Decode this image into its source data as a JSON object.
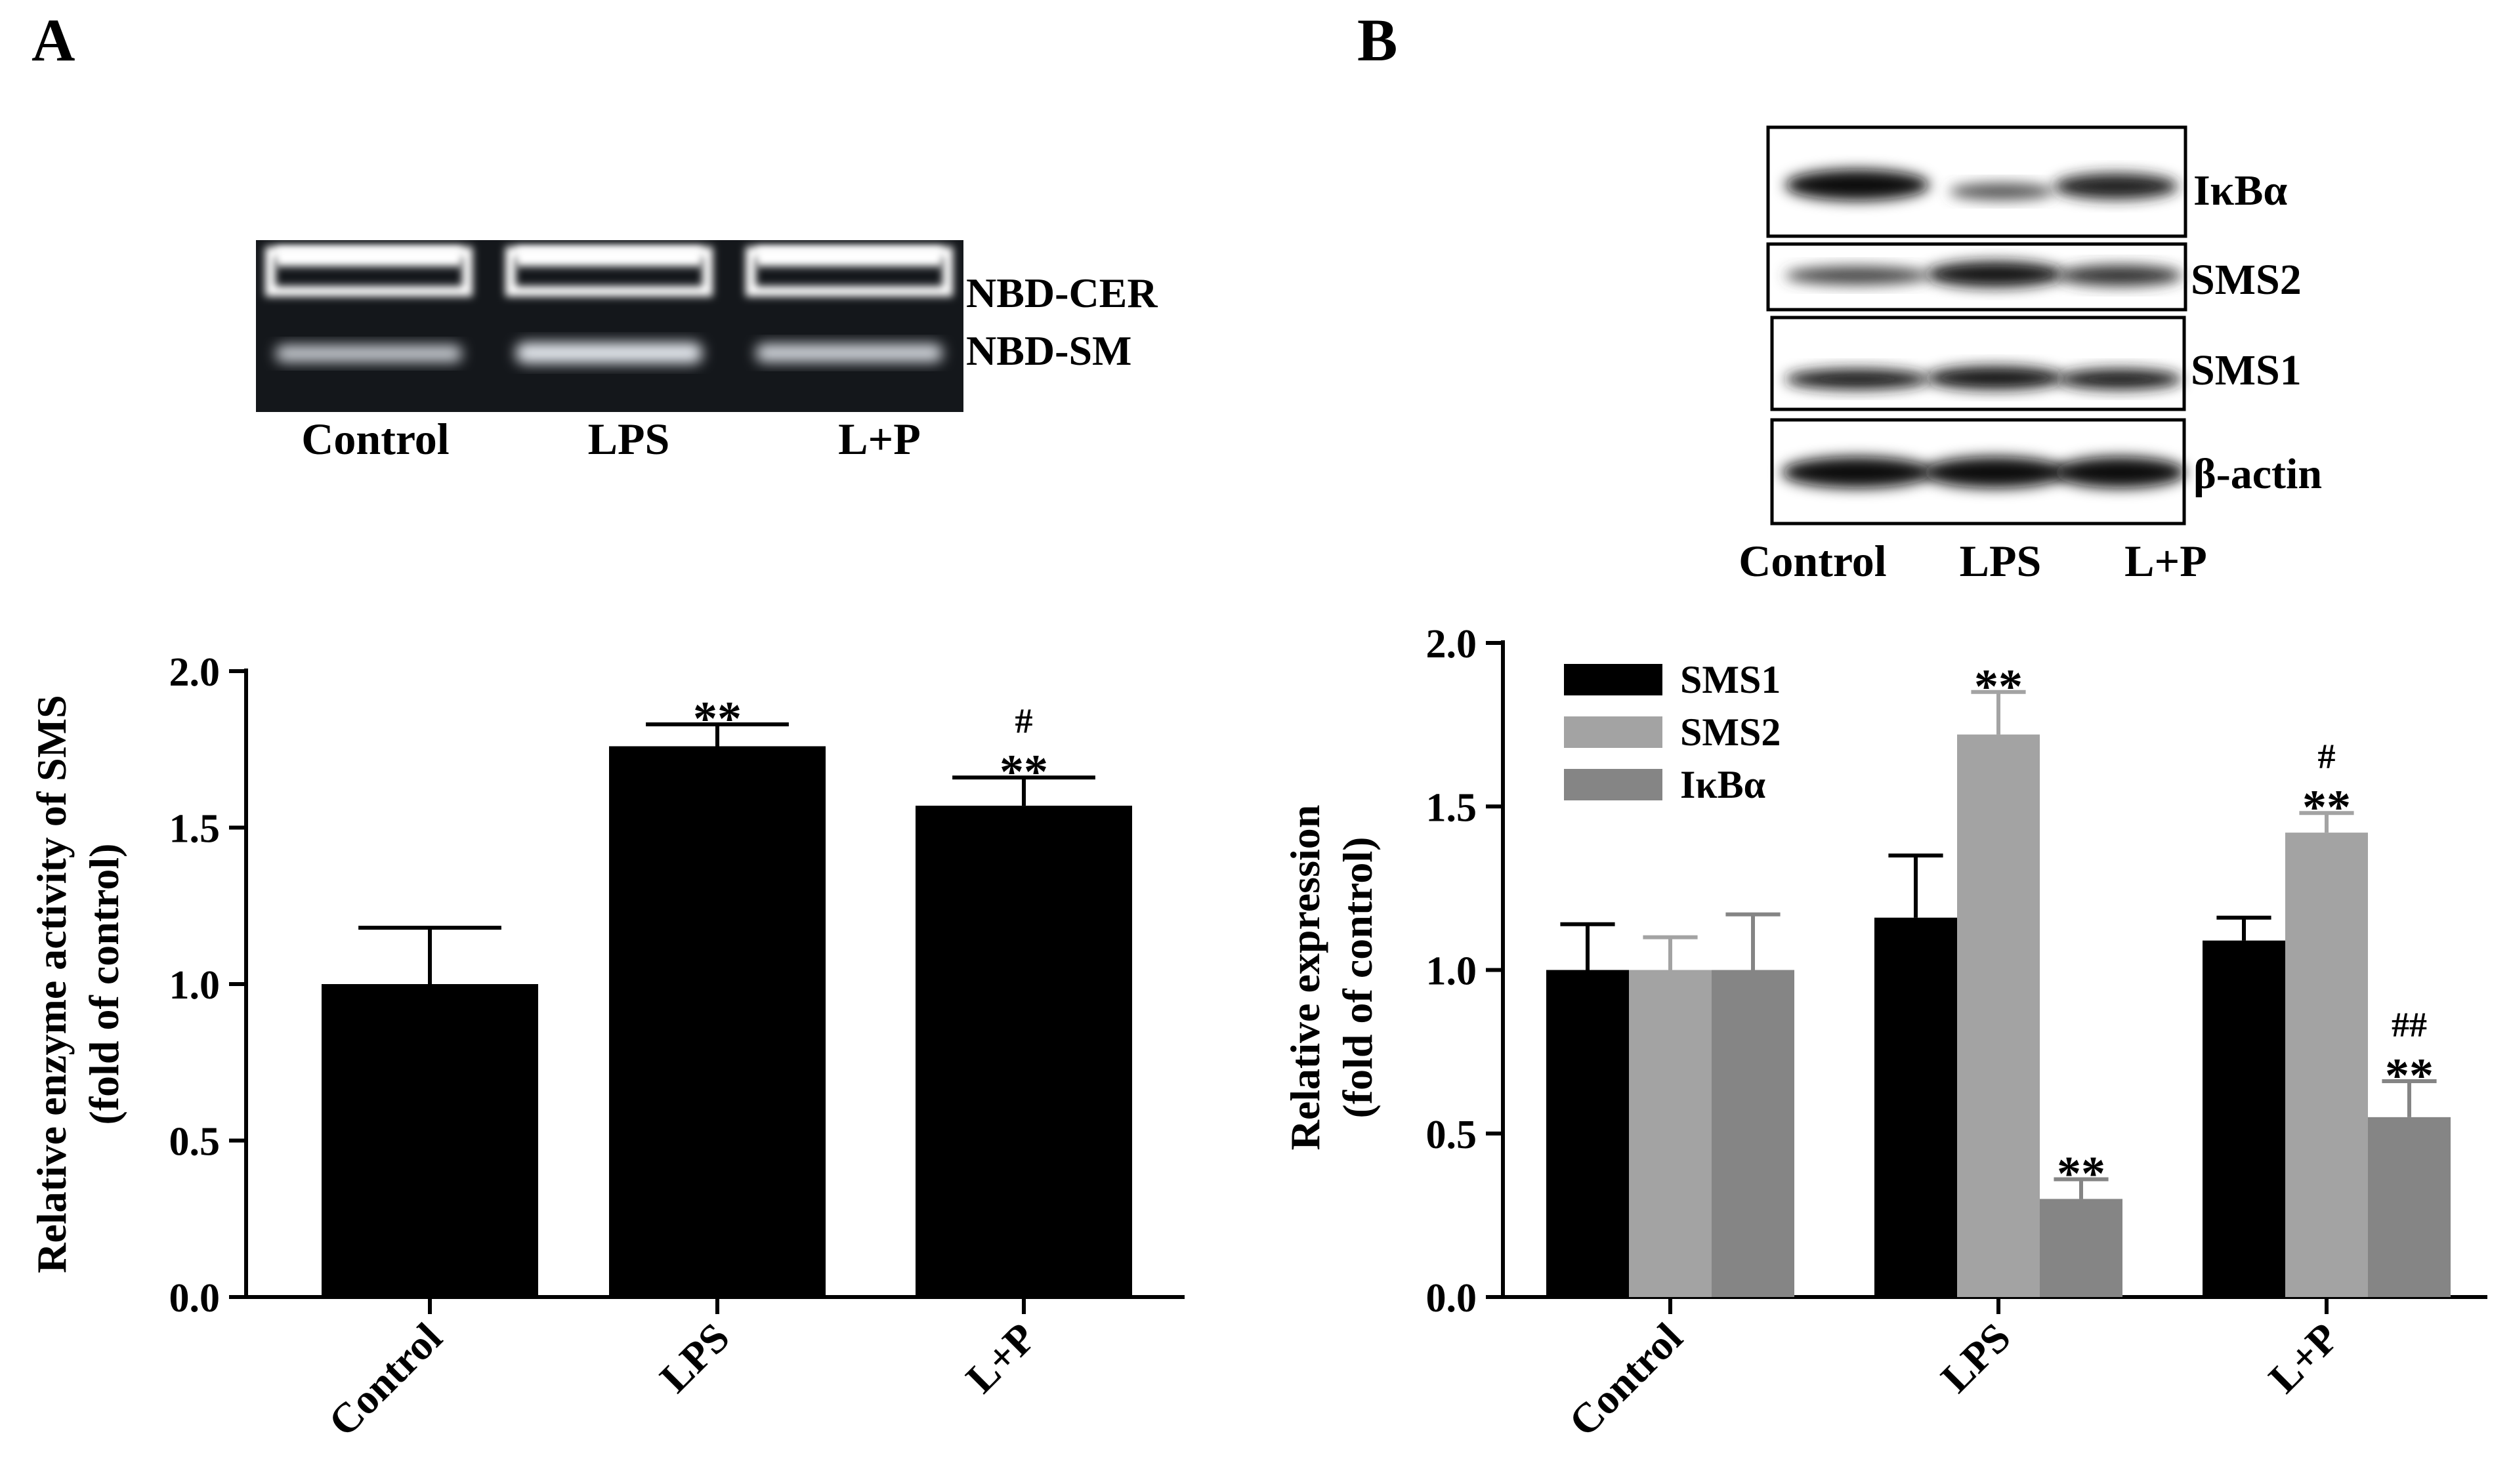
{
  "panels": [
    {
      "label": "A"
    },
    {
      "label": "B"
    }
  ],
  "blot_a": {
    "lanes": [
      "Control",
      "LPS",
      "L+P"
    ],
    "band_labels": [
      "NBD-CER",
      "NBD-SM"
    ]
  },
  "blot_b": {
    "lanes": [
      "Control",
      "LPS",
      "L+P"
    ],
    "rows": [
      "IκBα",
      "SMS2",
      "SMS1",
      "β-actin"
    ]
  },
  "chart_data": [
    {
      "type": "bar",
      "panel": "A",
      "title": "",
      "ylabel_lines": [
        "Relative enzyme activity of SMS",
        "(fold of control)"
      ],
      "xlabel": "",
      "categories": [
        "Control",
        "LPS",
        "L+P"
      ],
      "values": [
        1.0,
        1.76,
        1.57
      ],
      "errors": [
        0.18,
        0.07,
        0.09
      ],
      "annotations": [
        [],
        [
          "**"
        ],
        [
          "**",
          "#"
        ]
      ],
      "ylim": [
        0,
        2.0
      ],
      "yticks": [
        "0.0",
        "0.5",
        "1.0",
        "1.5",
        "2.0"
      ],
      "colors": [
        "#000000"
      ],
      "grid": false
    },
    {
      "type": "bar",
      "panel": "B",
      "title": "",
      "ylabel_lines": [
        "Relative expression",
        "(fold of control)"
      ],
      "xlabel": "",
      "categories": [
        "Control",
        "LPS",
        "L+P"
      ],
      "series": [
        {
          "name": "SMS1",
          "values": [
            1.0,
            1.16,
            1.09
          ],
          "errors": [
            0.14,
            0.19,
            0.07
          ],
          "annotations": [
            [],
            [],
            []
          ],
          "color": "#000000"
        },
        {
          "name": "SMS2",
          "values": [
            1.0,
            1.72,
            1.42
          ],
          "errors": [
            0.1,
            0.13,
            0.06
          ],
          "annotations": [
            [],
            [
              "**"
            ],
            [
              "**",
              "#"
            ]
          ],
          "color": "#a3a3a3"
        },
        {
          "name": "IκBα",
          "values": [
            1.0,
            0.3,
            0.55
          ],
          "errors": [
            0.17,
            0.06,
            0.11
          ],
          "annotations": [
            [],
            [
              "**"
            ],
            [
              "**",
              "##"
            ]
          ],
          "color": "#858585"
        }
      ],
      "ylim": [
        0,
        2.0
      ],
      "yticks": [
        "0.0",
        "0.5",
        "1.0",
        "1.5",
        "2.0"
      ],
      "legend": "top-left",
      "grid": false
    }
  ]
}
